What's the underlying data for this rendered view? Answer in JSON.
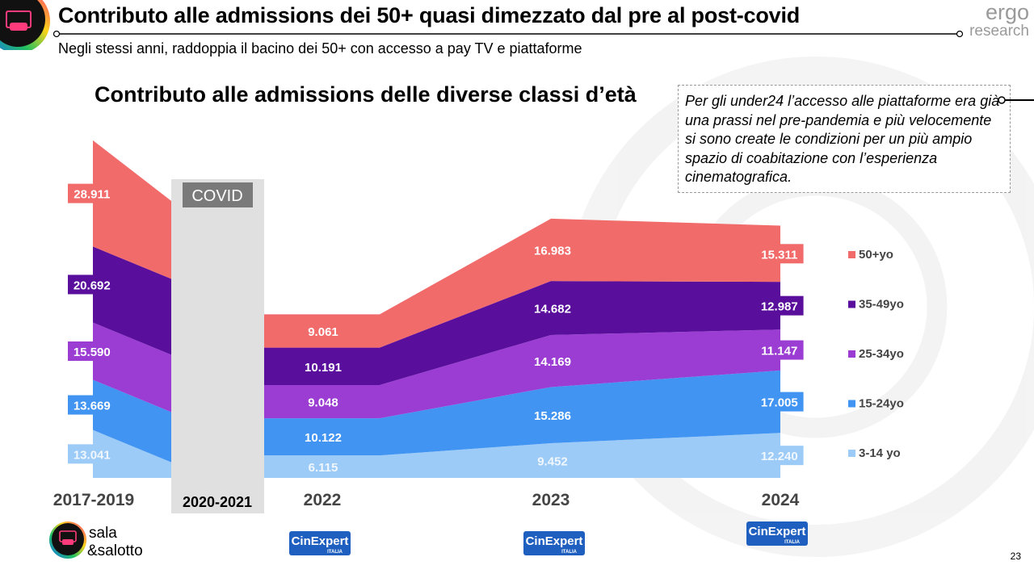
{
  "header": {
    "title": "Contributo alle admissions dei 50+ quasi dimezzato dal pre al post-covid",
    "subtitle": "Negli stessi anni, raddoppia il bacino dei 50+ con accesso a pay TV e piattaforme",
    "brand_line1": "ergo",
    "brand_line2": "research"
  },
  "note": {
    "text": "Per gli under24 l’accesso alle piattaforme era già una prassi nel pre-pandemia e più velocemente si sono create le condizioni per un più ampio spazio di coabitazione con l’esperienza cinematografica."
  },
  "covid_label": "COVID",
  "footer": {
    "logo_text_1": "sala",
    "logo_text_2": "&salotto",
    "source_logo": "CinExpert",
    "source_logo_sub": "ITALIA",
    "page_number": "23"
  },
  "colors": {
    "50+yo": "#f26b6b",
    "35-49yo": "#5a0e9c",
    "25-34yo": "#9b3dd2",
    "15-24yo": "#4194f2",
    "3-14 yo": "#9dcbf7",
    "covid_band": "#e0e0e0",
    "covid_label_bg": "#7a7a7a"
  },
  "chart_data": {
    "type": "area",
    "stacked": true,
    "title": "Contributo alle admissions delle diverse classi d’età",
    "categories": [
      "2017-2019",
      "2020-2021",
      "2022",
      "2023",
      "2024"
    ],
    "highlight_category": "2020-2021",
    "series": [
      {
        "name": "3-14 yo",
        "values": [
          13.041,
          null,
          6.115,
          9.452,
          12.24
        ],
        "labels": [
          "13.041",
          "",
          "6.115",
          "9.452",
          "12.240"
        ]
      },
      {
        "name": "15-24yo",
        "values": [
          13.669,
          null,
          10.122,
          15.286,
          17.005
        ],
        "labels": [
          "13.669",
          "",
          "10.122",
          "15.286",
          "17.005"
        ]
      },
      {
        "name": "25-34yo",
        "values": [
          15.59,
          null,
          9.048,
          14.169,
          11.147
        ],
        "labels": [
          "15.590",
          "",
          "9.048",
          "14.169",
          "11.147"
        ]
      },
      {
        "name": "35-49yo",
        "values": [
          20.692,
          null,
          10.191,
          14.682,
          12.987
        ],
        "labels": [
          "20.692",
          "",
          "10.191",
          "14.682",
          "12.987"
        ]
      },
      {
        "name": "50+yo",
        "values": [
          28.911,
          null,
          9.061,
          16.983,
          15.311
        ],
        "labels": [
          "28.911",
          "",
          "9.061",
          "16.983",
          "15.311"
        ]
      }
    ],
    "legend_position": "right",
    "legend_order": [
      "50+yo",
      "35-49yo",
      "25-34yo",
      "15-24yo",
      "3-14 yo"
    ],
    "ylim": [
      0,
      100
    ]
  }
}
